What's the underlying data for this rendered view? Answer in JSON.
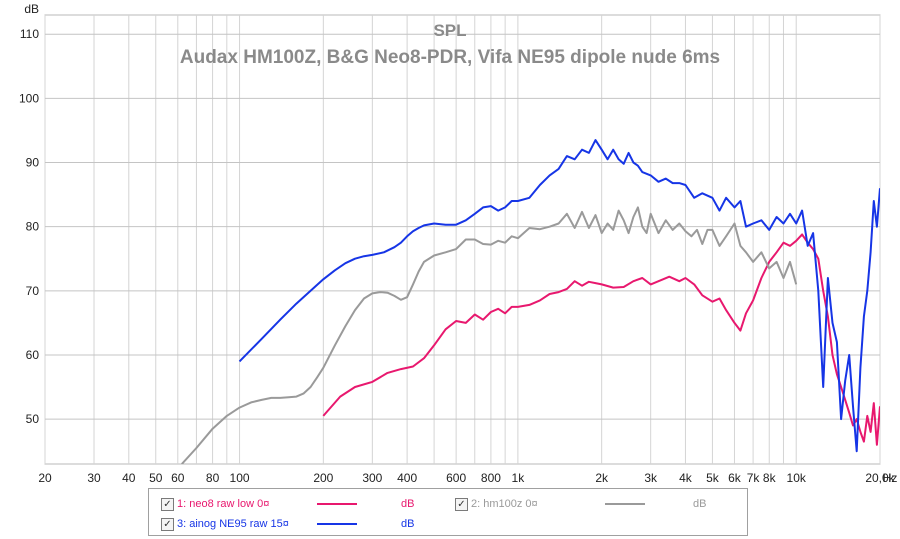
{
  "chart_data": {
    "type": "line",
    "title": "SPL",
    "subtitle": "Audax HM100Z, B&G Neo8-PDR, Vifa NE95 dipole nude 6ms",
    "ylabel": "dB",
    "xlabel": "Hz",
    "xscale": "log",
    "xlim": [
      20,
      20000
    ],
    "ylim": [
      43,
      113
    ],
    "grid": true,
    "x_ticks": [
      20,
      30,
      40,
      50,
      60,
      80,
      100,
      200,
      300,
      400,
      600,
      800,
      1000,
      2000,
      3000,
      4000,
      5000,
      6000,
      7000,
      8000,
      10000,
      20000
    ],
    "x_tick_labels": [
      "20",
      "30",
      "40",
      "50",
      "60",
      "80",
      "100",
      "200",
      "300",
      "400",
      "600",
      "800",
      "1k",
      "2k",
      "3k",
      "4k",
      "5k",
      "6k",
      "7k",
      "8k",
      "10k",
      "20,0k"
    ],
    "y_ticks": [
      50,
      60,
      70,
      80,
      90,
      100,
      110
    ],
    "y_tick_labels": [
      "50",
      "60",
      "70",
      "80",
      "90",
      "100",
      "110"
    ],
    "legend_position": "bottom",
    "series": [
      {
        "name": "1: neo8 raw low 0¤",
        "unit": "dB",
        "color": "#e8186e",
        "x": [
          200,
          230,
          260,
          300,
          340,
          380,
          420,
          460,
          500,
          550,
          600,
          650,
          700,
          750,
          800,
          850,
          900,
          950,
          1000,
          1100,
          1200,
          1300,
          1400,
          1500,
          1600,
          1700,
          1800,
          1900,
          2000,
          2200,
          2400,
          2600,
          2800,
          3000,
          3200,
          3500,
          3800,
          4000,
          4300,
          4600,
          5000,
          5300,
          5600,
          6000,
          6300,
          6600,
          7000,
          7500,
          8000,
          8500,
          9000,
          9500,
          10000,
          10500,
          11000,
          11500,
          12000,
          12500,
          13000,
          13500,
          14000,
          14500,
          15000,
          15500,
          16000,
          16500,
          17000,
          17500,
          18000,
          18500,
          19000,
          19500,
          20000
        ],
        "values": [
          50.5,
          53.5,
          55.0,
          55.8,
          57.2,
          57.8,
          58.2,
          59.5,
          61.5,
          64.0,
          65.3,
          65.0,
          66.3,
          65.5,
          66.7,
          67.2,
          66.5,
          67.5,
          67.5,
          67.8,
          68.5,
          69.5,
          69.8,
          70.3,
          71.5,
          70.8,
          71.4,
          71.2,
          71.0,
          70.5,
          70.6,
          71.5,
          72.0,
          71.0,
          71.5,
          72.2,
          71.5,
          72.0,
          71.0,
          69.3,
          68.3,
          68.8,
          67.0,
          65.0,
          63.8,
          66.5,
          68.5,
          72.0,
          74.5,
          76.0,
          77.5,
          77.0,
          77.8,
          78.8,
          77.5,
          76.5,
          75.0,
          70.0,
          66.0,
          60.0,
          57.0,
          55.0,
          53.0,
          51.0,
          49.0,
          50.0,
          48.0,
          46.5,
          50.5,
          48.0,
          52.5,
          46.0,
          52.0
        ]
      },
      {
        "name": "2: hm100z 0¤",
        "unit": "dB",
        "color": "#9a9a9a",
        "x": [
          62,
          70,
          80,
          90,
          100,
          110,
          120,
          130,
          140,
          150,
          160,
          170,
          180,
          190,
          200,
          220,
          240,
          260,
          280,
          300,
          320,
          340,
          360,
          380,
          400,
          420,
          440,
          460,
          500,
          550,
          600,
          650,
          700,
          750,
          800,
          850,
          900,
          950,
          1000,
          1100,
          1200,
          1300,
          1400,
          1500,
          1600,
          1700,
          1800,
          1900,
          2000,
          2100,
          2200,
          2300,
          2400,
          2500,
          2600,
          2700,
          2800,
          2900,
          3000,
          3200,
          3400,
          3600,
          3800,
          4000,
          4200,
          4400,
          4600,
          4800,
          5000,
          5300,
          5600,
          6000,
          6300,
          6600,
          7000,
          7500,
          8000,
          8500,
          9000,
          9500,
          10000
        ],
        "values": [
          43.0,
          45.5,
          48.5,
          50.5,
          51.8,
          52.6,
          53.0,
          53.3,
          53.3,
          53.4,
          53.5,
          54.0,
          55.0,
          56.5,
          58.0,
          61.5,
          64.5,
          67.0,
          68.8,
          69.6,
          69.8,
          69.7,
          69.2,
          68.6,
          69.0,
          71.0,
          73.0,
          74.5,
          75.5,
          76.0,
          76.5,
          78.0,
          78.0,
          77.3,
          77.2,
          77.8,
          77.5,
          78.5,
          78.2,
          79.8,
          79.6,
          80.0,
          80.5,
          82.0,
          79.8,
          82.3,
          79.8,
          81.8,
          79.0,
          80.5,
          79.5,
          82.5,
          81.0,
          79.0,
          81.5,
          83.0,
          80.0,
          79.0,
          82.0,
          79.0,
          81.0,
          79.5,
          80.5,
          79.3,
          78.5,
          79.5,
          77.3,
          79.5,
          79.5,
          77.0,
          78.5,
          80.5,
          77.0,
          76.0,
          74.5,
          76.0,
          73.5,
          74.5,
          72.0,
          74.5,
          71.0
        ]
      },
      {
        "name": "3: ainog NE95 raw 15¤",
        "unit": "dB",
        "color": "#1635e6",
        "x": [
          100,
          120,
          140,
          160,
          180,
          200,
          220,
          240,
          260,
          280,
          300,
          330,
          360,
          380,
          400,
          420,
          440,
          460,
          500,
          550,
          600,
          650,
          700,
          750,
          800,
          850,
          900,
          950,
          1000,
          1100,
          1200,
          1300,
          1400,
          1500,
          1600,
          1700,
          1800,
          1900,
          2000,
          2100,
          2200,
          2300,
          2400,
          2500,
          2600,
          2700,
          2800,
          3000,
          3200,
          3400,
          3600,
          3800,
          4000,
          4300,
          4600,
          5000,
          5300,
          5600,
          6000,
          6300,
          6600,
          7000,
          7500,
          8000,
          8500,
          9000,
          9500,
          10000,
          10500,
          11000,
          11500,
          12000,
          12500,
          13000,
          13500,
          14000,
          14500,
          15000,
          15500,
          16000,
          16500,
          17000,
          17500,
          18000,
          18500,
          19000,
          19500,
          20000
        ],
        "values": [
          59.0,
          62.5,
          65.5,
          68.0,
          70.0,
          71.8,
          73.2,
          74.3,
          75.0,
          75.4,
          75.6,
          76.0,
          76.8,
          77.5,
          78.5,
          79.3,
          79.8,
          80.2,
          80.5,
          80.3,
          80.3,
          81.0,
          82.0,
          83.0,
          83.2,
          82.5,
          83.0,
          84.0,
          84.0,
          84.5,
          86.5,
          88.0,
          89.0,
          91.0,
          90.5,
          92.0,
          91.5,
          93.5,
          92.0,
          90.5,
          92.0,
          90.5,
          89.8,
          91.5,
          90.0,
          89.5,
          88.5,
          88.0,
          87.0,
          87.5,
          86.8,
          86.8,
          86.5,
          84.5,
          85.2,
          84.5,
          82.5,
          84.5,
          83.0,
          84.0,
          80.0,
          80.5,
          81.0,
          79.5,
          81.5,
          80.5,
          82.0,
          80.5,
          82.5,
          77.0,
          79.0,
          70.0,
          55.0,
          72.0,
          65.0,
          62.0,
          50.0,
          56.0,
          60.0,
          52.0,
          45.0,
          58.0,
          66.0,
          70.0,
          76.0,
          84.0,
          80.0,
          86.0
        ]
      }
    ]
  },
  "legend": {
    "items": [
      {
        "check": "✓",
        "label": "1: neo8 raw low 0¤",
        "unit": "dB",
        "color": "#e8186e",
        "label_color": "#e8186e"
      },
      {
        "check": "✓",
        "label": "2: hm100z 0¤",
        "unit": "dB",
        "color": "#9a9a9a",
        "label_color": "#9a9a9a"
      },
      {
        "check": "✓",
        "label": "3: ainog NE95 raw 15¤",
        "unit": "dB",
        "color": "#1635e6",
        "label_color": "#1635e6"
      }
    ]
  }
}
